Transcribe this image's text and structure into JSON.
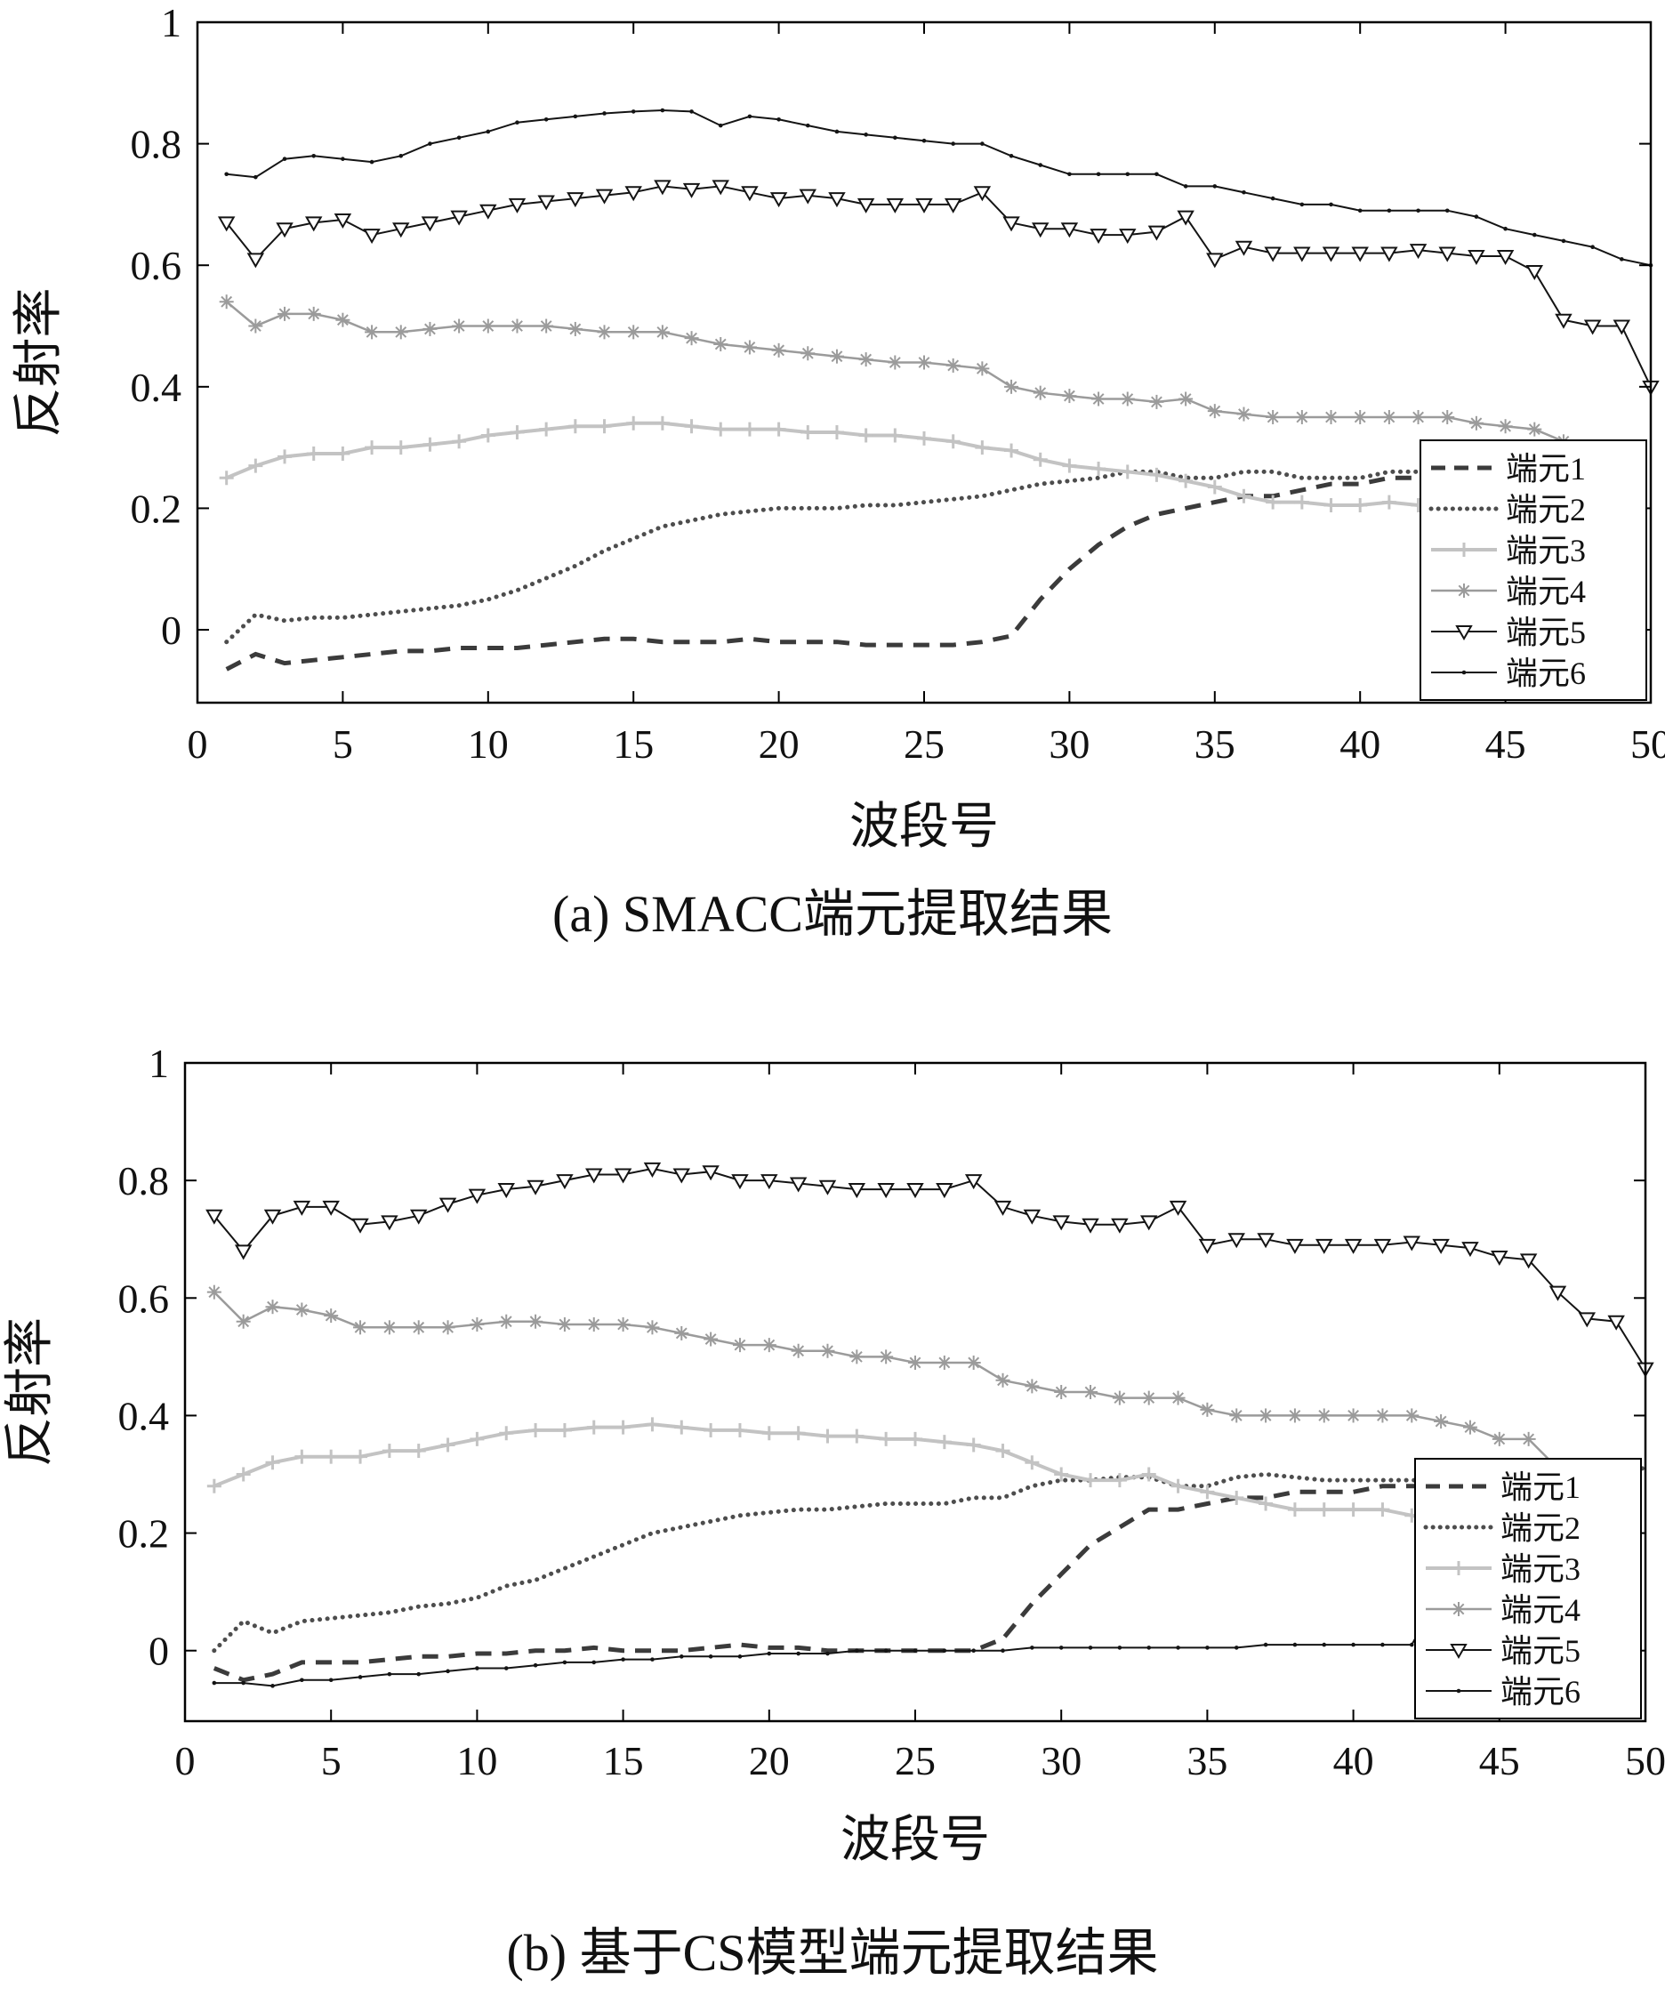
{
  "page": {
    "background": "#ffffff",
    "text_color": "#111111"
  },
  "chart_data": [
    {
      "id": "a",
      "type": "line",
      "title": "(a) SMACC端元提取结果",
      "xlabel": "波段号",
      "ylabel": "反射率",
      "xlim": [
        0,
        50
      ],
      "ylim": [
        -0.12,
        1.0
      ],
      "xticks": [
        0,
        5,
        10,
        15,
        20,
        25,
        30,
        35,
        40,
        45,
        50
      ],
      "yticks": [
        0,
        0.2,
        0.4,
        0.6,
        0.8,
        1
      ],
      "ytick_labels": [
        "0",
        "0.2",
        "0.4",
        "0.6",
        "0.8",
        "1"
      ],
      "grid": false,
      "legend_position": "bottom-right",
      "series": [
        {
          "name": "端元1",
          "color": "#3b3b3b",
          "line": "dashed",
          "width": 5,
          "marker": "none",
          "x_start": 1,
          "values": [
            -0.065,
            -0.04,
            -0.055,
            -0.05,
            -0.045,
            -0.04,
            -0.035,
            -0.035,
            -0.03,
            -0.03,
            -0.03,
            -0.025,
            -0.02,
            -0.015,
            -0.015,
            -0.02,
            -0.02,
            -0.02,
            -0.015,
            -0.02,
            -0.02,
            -0.02,
            -0.025,
            -0.025,
            -0.025,
            -0.025,
            -0.02,
            -0.01,
            0.05,
            0.1,
            0.14,
            0.17,
            0.19,
            0.2,
            0.21,
            0.22,
            0.22,
            0.23,
            0.24,
            0.24,
            0.25,
            0.25,
            0.26
          ]
        },
        {
          "name": "端元2",
          "color": "#4d4d4d",
          "line": "dotted",
          "width": 5,
          "marker": "none",
          "x_start": 1,
          "values": [
            -0.02,
            0.025,
            0.015,
            0.02,
            0.02,
            0.025,
            0.03,
            0.035,
            0.04,
            0.05,
            0.065,
            0.085,
            0.105,
            0.13,
            0.15,
            0.17,
            0.18,
            0.19,
            0.195,
            0.2,
            0.2,
            0.2,
            0.205,
            0.205,
            0.21,
            0.215,
            0.22,
            0.23,
            0.24,
            0.245,
            0.25,
            0.26,
            0.26,
            0.25,
            0.25,
            0.26,
            0.26,
            0.25,
            0.25,
            0.25,
            0.26,
            0.26,
            0.26
          ]
        },
        {
          "name": "端元3",
          "color": "#c3c3c3",
          "line": "solid",
          "width": 4,
          "marker": "plus",
          "x_start": 1,
          "values": [
            0.25,
            0.27,
            0.285,
            0.29,
            0.29,
            0.3,
            0.3,
            0.305,
            0.31,
            0.32,
            0.325,
            0.33,
            0.335,
            0.335,
            0.34,
            0.34,
            0.335,
            0.33,
            0.33,
            0.33,
            0.325,
            0.325,
            0.32,
            0.32,
            0.315,
            0.31,
            0.3,
            0.295,
            0.28,
            0.27,
            0.265,
            0.26,
            0.255,
            0.245,
            0.235,
            0.22,
            0.21,
            0.21,
            0.205,
            0.205,
            0.21,
            0.205,
            0.195
          ]
        },
        {
          "name": "端元4",
          "color": "#9b9b9b",
          "line": "solid",
          "width": 2.5,
          "marker": "asterisk",
          "x_start": 1,
          "values": [
            0.54,
            0.5,
            0.52,
            0.52,
            0.51,
            0.49,
            0.49,
            0.495,
            0.5,
            0.5,
            0.5,
            0.5,
            0.495,
            0.49,
            0.49,
            0.49,
            0.48,
            0.47,
            0.465,
            0.46,
            0.455,
            0.45,
            0.445,
            0.44,
            0.44,
            0.435,
            0.43,
            0.4,
            0.39,
            0.385,
            0.38,
            0.38,
            0.375,
            0.38,
            0.36,
            0.355,
            0.35,
            0.35,
            0.35,
            0.35,
            0.35,
            0.35,
            0.35,
            0.34,
            0.335,
            0.33,
            0.31
          ]
        },
        {
          "name": "端元5",
          "color": "#141414",
          "line": "solid",
          "width": 2,
          "marker": "triangle-down",
          "x_start": 1,
          "values": [
            0.67,
            0.61,
            0.66,
            0.67,
            0.675,
            0.65,
            0.66,
            0.67,
            0.68,
            0.69,
            0.7,
            0.705,
            0.71,
            0.715,
            0.72,
            0.73,
            0.725,
            0.73,
            0.72,
            0.71,
            0.715,
            0.71,
            0.7,
            0.7,
            0.7,
            0.7,
            0.72,
            0.67,
            0.66,
            0.66,
            0.65,
            0.65,
            0.655,
            0.68,
            0.61,
            0.63,
            0.62,
            0.62,
            0.62,
            0.62,
            0.62,
            0.625,
            0.62,
            0.615,
            0.615,
            0.59,
            0.51,
            0.5,
            0.5,
            0.4
          ]
        },
        {
          "name": "端元6",
          "color": "#141414",
          "line": "solid",
          "width": 2,
          "marker": "dot",
          "x_start": 1,
          "values": [
            0.75,
            0.745,
            0.775,
            0.78,
            0.775,
            0.77,
            0.78,
            0.8,
            0.81,
            0.82,
            0.835,
            0.84,
            0.845,
            0.85,
            0.853,
            0.855,
            0.853,
            0.83,
            0.845,
            0.84,
            0.83,
            0.82,
            0.815,
            0.81,
            0.805,
            0.8,
            0.8,
            0.78,
            0.765,
            0.75,
            0.75,
            0.75,
            0.75,
            0.73,
            0.73,
            0.72,
            0.71,
            0.7,
            0.7,
            0.69,
            0.69,
            0.69,
            0.69,
            0.68,
            0.66,
            0.65,
            0.64,
            0.63,
            0.61,
            0.6
          ]
        }
      ]
    },
    {
      "id": "b",
      "type": "line",
      "title": "(b) 基于CS模型端元提取结果",
      "xlabel": "波段号",
      "ylabel": "反射率",
      "xlim": [
        0,
        50
      ],
      "ylim": [
        -0.12,
        1.0
      ],
      "xticks": [
        0,
        5,
        10,
        15,
        20,
        25,
        30,
        35,
        40,
        45,
        50
      ],
      "yticks": [
        0,
        0.2,
        0.4,
        0.6,
        0.8,
        1
      ],
      "ytick_labels": [
        "0",
        "0.2",
        "0.4",
        "0.6",
        "0.8",
        "1"
      ],
      "grid": false,
      "legend_position": "bottom-right",
      "series": [
        {
          "name": "端元1",
          "color": "#3b3b3b",
          "line": "dashed",
          "width": 5,
          "marker": "none",
          "x_start": 1,
          "values": [
            -0.03,
            -0.05,
            -0.04,
            -0.02,
            -0.02,
            -0.02,
            -0.015,
            -0.01,
            -0.01,
            -0.005,
            -0.005,
            0.0,
            0.0,
            0.005,
            0.0,
            0.0,
            0.0,
            0.005,
            0.01,
            0.005,
            0.005,
            0.0,
            0.0,
            0.0,
            0.0,
            0.0,
            0.0,
            0.02,
            0.08,
            0.13,
            0.18,
            0.21,
            0.24,
            0.24,
            0.25,
            0.26,
            0.26,
            0.27,
            0.27,
            0.27,
            0.28,
            0.28,
            0.28,
            0.29,
            0.29,
            0.29,
            0.3,
            0.3,
            0.3,
            0.3
          ]
        },
        {
          "name": "端元2",
          "color": "#4d4d4d",
          "line": "dotted",
          "width": 5,
          "marker": "none",
          "x_start": 1,
          "values": [
            0.0,
            0.05,
            0.03,
            0.05,
            0.055,
            0.06,
            0.065,
            0.075,
            0.08,
            0.09,
            0.11,
            0.12,
            0.14,
            0.16,
            0.18,
            0.2,
            0.21,
            0.22,
            0.23,
            0.235,
            0.24,
            0.24,
            0.245,
            0.25,
            0.25,
            0.25,
            0.26,
            0.26,
            0.28,
            0.29,
            0.29,
            0.295,
            0.295,
            0.28,
            0.28,
            0.295,
            0.3,
            0.295,
            0.29,
            0.29,
            0.29,
            0.29,
            0.29,
            0.3,
            0.3,
            0.3,
            0.3,
            0.3,
            0.31,
            0.31
          ]
        },
        {
          "name": "端元3",
          "color": "#c3c3c3",
          "line": "solid",
          "width": 4,
          "marker": "plus",
          "x_start": 1,
          "values": [
            0.28,
            0.3,
            0.32,
            0.33,
            0.33,
            0.33,
            0.34,
            0.34,
            0.35,
            0.36,
            0.37,
            0.375,
            0.375,
            0.38,
            0.38,
            0.385,
            0.38,
            0.375,
            0.375,
            0.37,
            0.37,
            0.365,
            0.365,
            0.36,
            0.36,
            0.355,
            0.35,
            0.34,
            0.32,
            0.3,
            0.29,
            0.29,
            0.3,
            0.28,
            0.27,
            0.26,
            0.25,
            0.24,
            0.24,
            0.24,
            0.24,
            0.23,
            0.22
          ]
        },
        {
          "name": "端元4",
          "color": "#9b9b9b",
          "line": "solid",
          "width": 2.5,
          "marker": "asterisk",
          "x_start": 1,
          "values": [
            0.61,
            0.56,
            0.585,
            0.58,
            0.57,
            0.55,
            0.55,
            0.55,
            0.55,
            0.555,
            0.56,
            0.56,
            0.555,
            0.555,
            0.555,
            0.55,
            0.54,
            0.53,
            0.52,
            0.52,
            0.51,
            0.51,
            0.5,
            0.5,
            0.49,
            0.49,
            0.49,
            0.46,
            0.45,
            0.44,
            0.44,
            0.43,
            0.43,
            0.43,
            0.41,
            0.4,
            0.4,
            0.4,
            0.4,
            0.4,
            0.4,
            0.4,
            0.39,
            0.38,
            0.36,
            0.36,
            0.31
          ]
        },
        {
          "name": "端元5",
          "color": "#141414",
          "line": "solid",
          "width": 2,
          "marker": "triangle-down",
          "x_start": 1,
          "values": [
            0.74,
            0.68,
            0.74,
            0.755,
            0.755,
            0.725,
            0.73,
            0.74,
            0.76,
            0.775,
            0.785,
            0.79,
            0.8,
            0.81,
            0.81,
            0.82,
            0.81,
            0.815,
            0.8,
            0.8,
            0.795,
            0.79,
            0.785,
            0.785,
            0.785,
            0.785,
            0.8,
            0.755,
            0.74,
            0.73,
            0.725,
            0.725,
            0.73,
            0.755,
            0.69,
            0.7,
            0.7,
            0.69,
            0.69,
            0.69,
            0.69,
            0.695,
            0.69,
            0.685,
            0.67,
            0.665,
            0.61,
            0.565,
            0.56,
            0.48
          ]
        },
        {
          "name": "端元6",
          "color": "#141414",
          "line": "solid",
          "width": 2,
          "marker": "dot",
          "x_start": 1,
          "values": [
            -0.055,
            -0.055,
            -0.06,
            -0.05,
            -0.05,
            -0.045,
            -0.04,
            -0.04,
            -0.035,
            -0.03,
            -0.03,
            -0.025,
            -0.02,
            -0.02,
            -0.015,
            -0.015,
            -0.01,
            -0.01,
            -0.01,
            -0.005,
            -0.005,
            -0.005,
            0.0,
            0.0,
            0.0,
            0.0,
            0.0,
            0.0,
            0.005,
            0.005,
            0.005,
            0.005,
            0.005,
            0.005,
            0.005,
            0.005,
            0.01,
            0.01,
            0.01,
            0.01,
            0.01,
            0.01,
            0.1
          ]
        }
      ]
    }
  ]
}
